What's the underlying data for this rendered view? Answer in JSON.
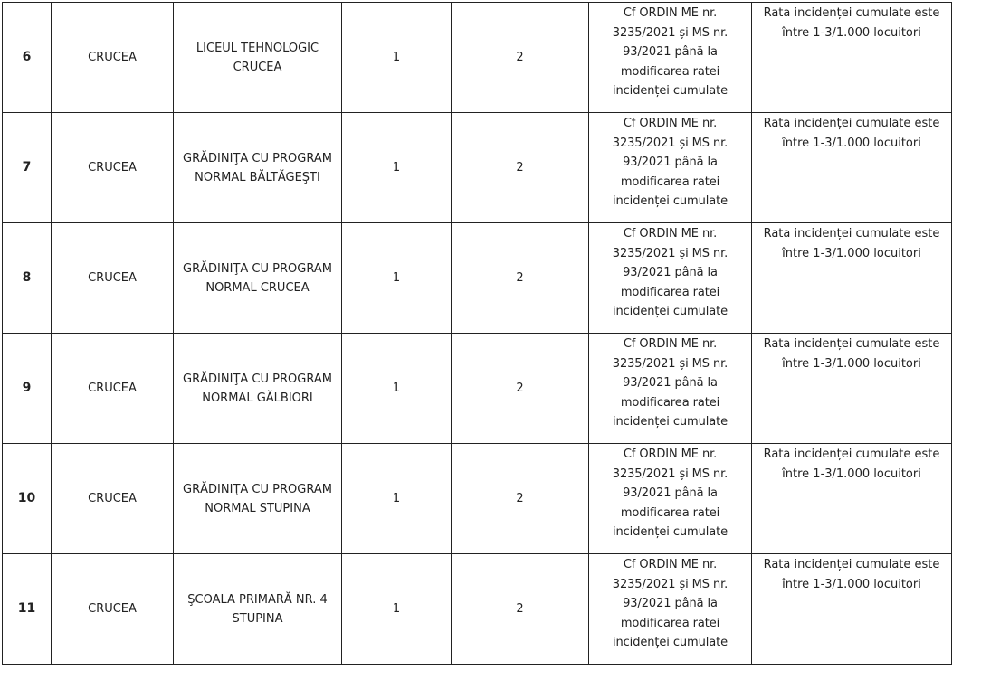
{
  "rows": [
    {
      "nr": "6",
      "localitate": "CRUCEA",
      "unitate": "LICEUL TEHNOLOGIC CRUCEA",
      "col4": "1",
      "col5": "2",
      "temei": "Cf ORDIN ME nr. 3235/2021 și MS nr. 93/2021 până la modificarea ratei incidenței cumulate",
      "motiv": "Rata incidenței cumulate este între 1-3/1.000 locuitori"
    },
    {
      "nr": "7",
      "localitate": "CRUCEA",
      "unitate": "GRĂDINIŢA CU PROGRAM NORMAL BĂLTĂGEŞTI",
      "col4": "1",
      "col5": "2",
      "temei": "Cf ORDIN ME nr. 3235/2021 și MS nr. 93/2021 până la modificarea ratei incidenței cumulate",
      "motiv": "Rata incidenței cumulate este între 1-3/1.000 locuitori"
    },
    {
      "nr": "8",
      "localitate": "CRUCEA",
      "unitate": "GRĂDINIŢA CU PROGRAM NORMAL CRUCEA",
      "col4": "1",
      "col5": "2",
      "temei": "Cf ORDIN ME nr. 3235/2021 și MS nr. 93/2021 până la modificarea ratei incidenței cumulate",
      "motiv": "Rata incidenței cumulate este între 1-3/1.000 locuitori"
    },
    {
      "nr": "9",
      "localitate": "CRUCEA",
      "unitate": "GRĂDINIŢA CU PROGRAM NORMAL GĂLBIORI",
      "col4": "1",
      "col5": "2",
      "temei": "Cf ORDIN ME nr. 3235/2021 și MS nr. 93/2021 până la modificarea ratei incidenței cumulate",
      "motiv": "Rata incidenței cumulate este între 1-3/1.000 locuitori"
    },
    {
      "nr": "10",
      "localitate": "CRUCEA",
      "unitate": "GRĂDINIŢA CU PROGRAM NORMAL STUPINA",
      "col4": "1",
      "col5": "2",
      "temei": "Cf ORDIN ME nr. 3235/2021 și MS nr. 93/2021 până la modificarea ratei incidenței cumulate",
      "motiv": "Rata incidenței cumulate este între 1-3/1.000 locuitori"
    },
    {
      "nr": "11",
      "localitate": "CRUCEA",
      "unitate": "ŞCOALA PRIMARĂ NR. 4 STUPINA",
      "col4": "1",
      "col5": "2",
      "temei": "Cf ORDIN ME nr. 3235/2021 și MS nr. 93/2021 până la modificarea ratei incidenței cumulate",
      "motiv": "Rata incidenței cumulate este între 1-3/1.000 locuitori"
    }
  ]
}
